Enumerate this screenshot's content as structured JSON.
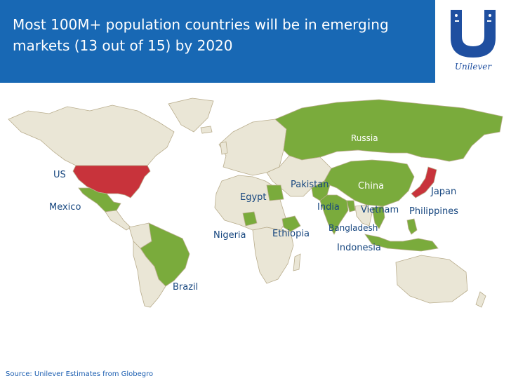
{
  "header": {
    "title_line1": "Most 100M+  population countries will be in emerging",
    "title_line2": "markets (13 out of 15) by 2020"
  },
  "logo": {
    "text": "Unilever",
    "icon": "unilever-u-logo-icon"
  },
  "map": {
    "colors": {
      "emerging": "#7aab3c",
      "developed": "#c8333b",
      "other": "#eae6d6",
      "border": "#b9ad8d"
    },
    "countries": {
      "us": "US",
      "mexico": "Mexico",
      "brazil": "Brazil",
      "russia": "Russia",
      "pakistan": "Pakistan",
      "china": "China",
      "japan": "Japan",
      "egypt": "Egypt",
      "india": "India",
      "vietnam": "Vietnam",
      "philippines": "Philippines",
      "bangladesh": "Bangladesh",
      "nigeria": "Nigeria",
      "ethiopia": "Ethiopia",
      "indonesia": "Indonesia"
    }
  },
  "source": "Source: Unilever Estimates from Globegro"
}
